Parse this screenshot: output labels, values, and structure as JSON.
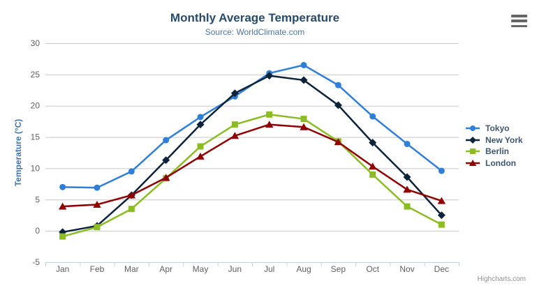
{
  "chart_data": {
    "type": "line",
    "title": "Monthly Average Temperature",
    "subtitle": "Source: WorldClimate.com",
    "xlabel": "",
    "ylabel": "Temperature (°C)",
    "categories": [
      "Jan",
      "Feb",
      "Mar",
      "Apr",
      "May",
      "Jun",
      "Jul",
      "Aug",
      "Sep",
      "Oct",
      "Nov",
      "Dec"
    ],
    "ylim": [
      -5,
      30
    ],
    "ytick_interval": 5,
    "grid": "horizontal-only",
    "legend_position": "right",
    "series": [
      {
        "name": "Tokyo",
        "color": "#2f7ed8",
        "marker": "circle",
        "values": [
          7.0,
          6.9,
          9.5,
          14.5,
          18.2,
          21.5,
          25.2,
          26.5,
          23.3,
          18.3,
          13.9,
          9.6
        ]
      },
      {
        "name": "New York",
        "color": "#0d233a",
        "marker": "diamond",
        "values": [
          -0.2,
          0.8,
          5.7,
          11.3,
          17.0,
          22.0,
          24.8,
          24.1,
          20.1,
          14.1,
          8.6,
          2.5
        ]
      },
      {
        "name": "Berlin",
        "color": "#8bbc21",
        "marker": "square",
        "values": [
          -0.9,
          0.6,
          3.5,
          8.4,
          13.5,
          17.0,
          18.6,
          17.9,
          14.3,
          9.0,
          3.9,
          1.0
        ]
      },
      {
        "name": "London",
        "color": "#910000",
        "marker": "triangle",
        "values": [
          3.9,
          4.2,
          5.7,
          8.5,
          11.9,
          15.2,
          17.0,
          16.6,
          14.2,
          10.3,
          6.6,
          4.8
        ]
      }
    ]
  },
  "colors": {
    "title": "#274b6d",
    "subtitle": "#4d759e",
    "axis_title": "#4572a7",
    "axis_label": "#606060",
    "grid_line": "#c8c8c8",
    "axis_line": "#c0d0e0",
    "legend_text": "#3e576f",
    "credits": "#909090",
    "menu_icon": "#666666"
  },
  "export_menu": {
    "icon": "hamburger-menu-icon"
  },
  "credits": {
    "label": "Highcharts.com"
  }
}
